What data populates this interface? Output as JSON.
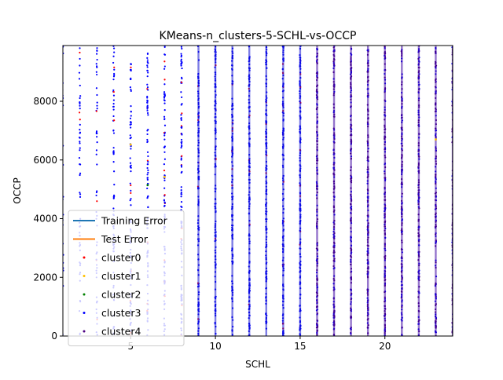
{
  "chart_data": {
    "type": "scatter",
    "title": "KMeans-n_clusters-5-SCHL-vs-OCCP",
    "xlabel": "SCHL",
    "ylabel": "OCCP",
    "xlim": [
      1,
      24
    ],
    "ylim": [
      0,
      9900
    ],
    "xticks": [
      5,
      10,
      15,
      20
    ],
    "yticks": [
      0,
      2000,
      4000,
      6000,
      8000
    ],
    "grid": false,
    "legend_position": "lower-left",
    "legend": [
      {
        "label": "Training Error",
        "kind": "line",
        "color": "#1f77b4"
      },
      {
        "label": "Test Error",
        "kind": "line",
        "color": "#ff7f0e"
      },
      {
        "label": "cluster0",
        "kind": "point",
        "color": "#ff0000"
      },
      {
        "label": "cluster1",
        "kind": "point",
        "color": "#ffbf00"
      },
      {
        "label": "cluster2",
        "kind": "point",
        "color": "#008000"
      },
      {
        "label": "cluster3",
        "kind": "point",
        "color": "#0000ff"
      },
      {
        "label": "cluster4",
        "kind": "point",
        "color": "#4b0082"
      }
    ],
    "series": [
      {
        "name": "cluster0",
        "color": "#ff0000",
        "description": "sparse points scattered across SCHL columns",
        "x": [
          2,
          3,
          4,
          5,
          6,
          7,
          8,
          9,
          10,
          11,
          12,
          13,
          14,
          15,
          16,
          17,
          18,
          19,
          20,
          21,
          22,
          23,
          24
        ]
      },
      {
        "name": "cluster1",
        "color": "#ffbf00",
        "x": [
          5,
          7,
          23
        ]
      },
      {
        "name": "cluster2",
        "color": "#008000",
        "x": [
          6
        ]
      },
      {
        "name": "cluster3",
        "color": "#0000ff",
        "x": [
          2,
          3,
          4,
          5,
          6,
          7,
          8,
          9,
          10,
          11,
          12,
          13,
          14,
          15,
          16,
          17,
          18,
          19,
          20,
          21,
          22,
          23,
          24
        ]
      },
      {
        "name": "cluster4",
        "color": "#4b0082",
        "x": [
          16,
          17,
          18,
          19,
          20,
          21,
          22,
          23,
          24
        ]
      }
    ],
    "columns": [
      {
        "x": 1,
        "density": 0.15
      },
      {
        "x": 2,
        "density": 0.35
      },
      {
        "x": 3,
        "density": 0.35
      },
      {
        "x": 4,
        "density": 0.45
      },
      {
        "x": 5,
        "density": 0.55
      },
      {
        "x": 6,
        "density": 0.6
      },
      {
        "x": 7,
        "density": 0.6
      },
      {
        "x": 8,
        "density": 0.7
      },
      {
        "x": 9,
        "density": 0.8
      },
      {
        "x": 10,
        "density": 0.85
      },
      {
        "x": 11,
        "density": 0.85
      },
      {
        "x": 12,
        "density": 0.9
      },
      {
        "x": 13,
        "density": 0.92
      },
      {
        "x": 14,
        "density": 0.92
      },
      {
        "x": 15,
        "density": 0.95
      },
      {
        "x": 16,
        "density": 1.0
      },
      {
        "x": 17,
        "density": 1.0
      },
      {
        "x": 18,
        "density": 1.0
      },
      {
        "x": 19,
        "density": 1.0
      },
      {
        "x": 20,
        "density": 1.0
      },
      {
        "x": 21,
        "density": 1.0
      },
      {
        "x": 22,
        "density": 0.95
      },
      {
        "x": 23,
        "density": 0.95
      },
      {
        "x": 24,
        "density": 1.0
      }
    ]
  }
}
